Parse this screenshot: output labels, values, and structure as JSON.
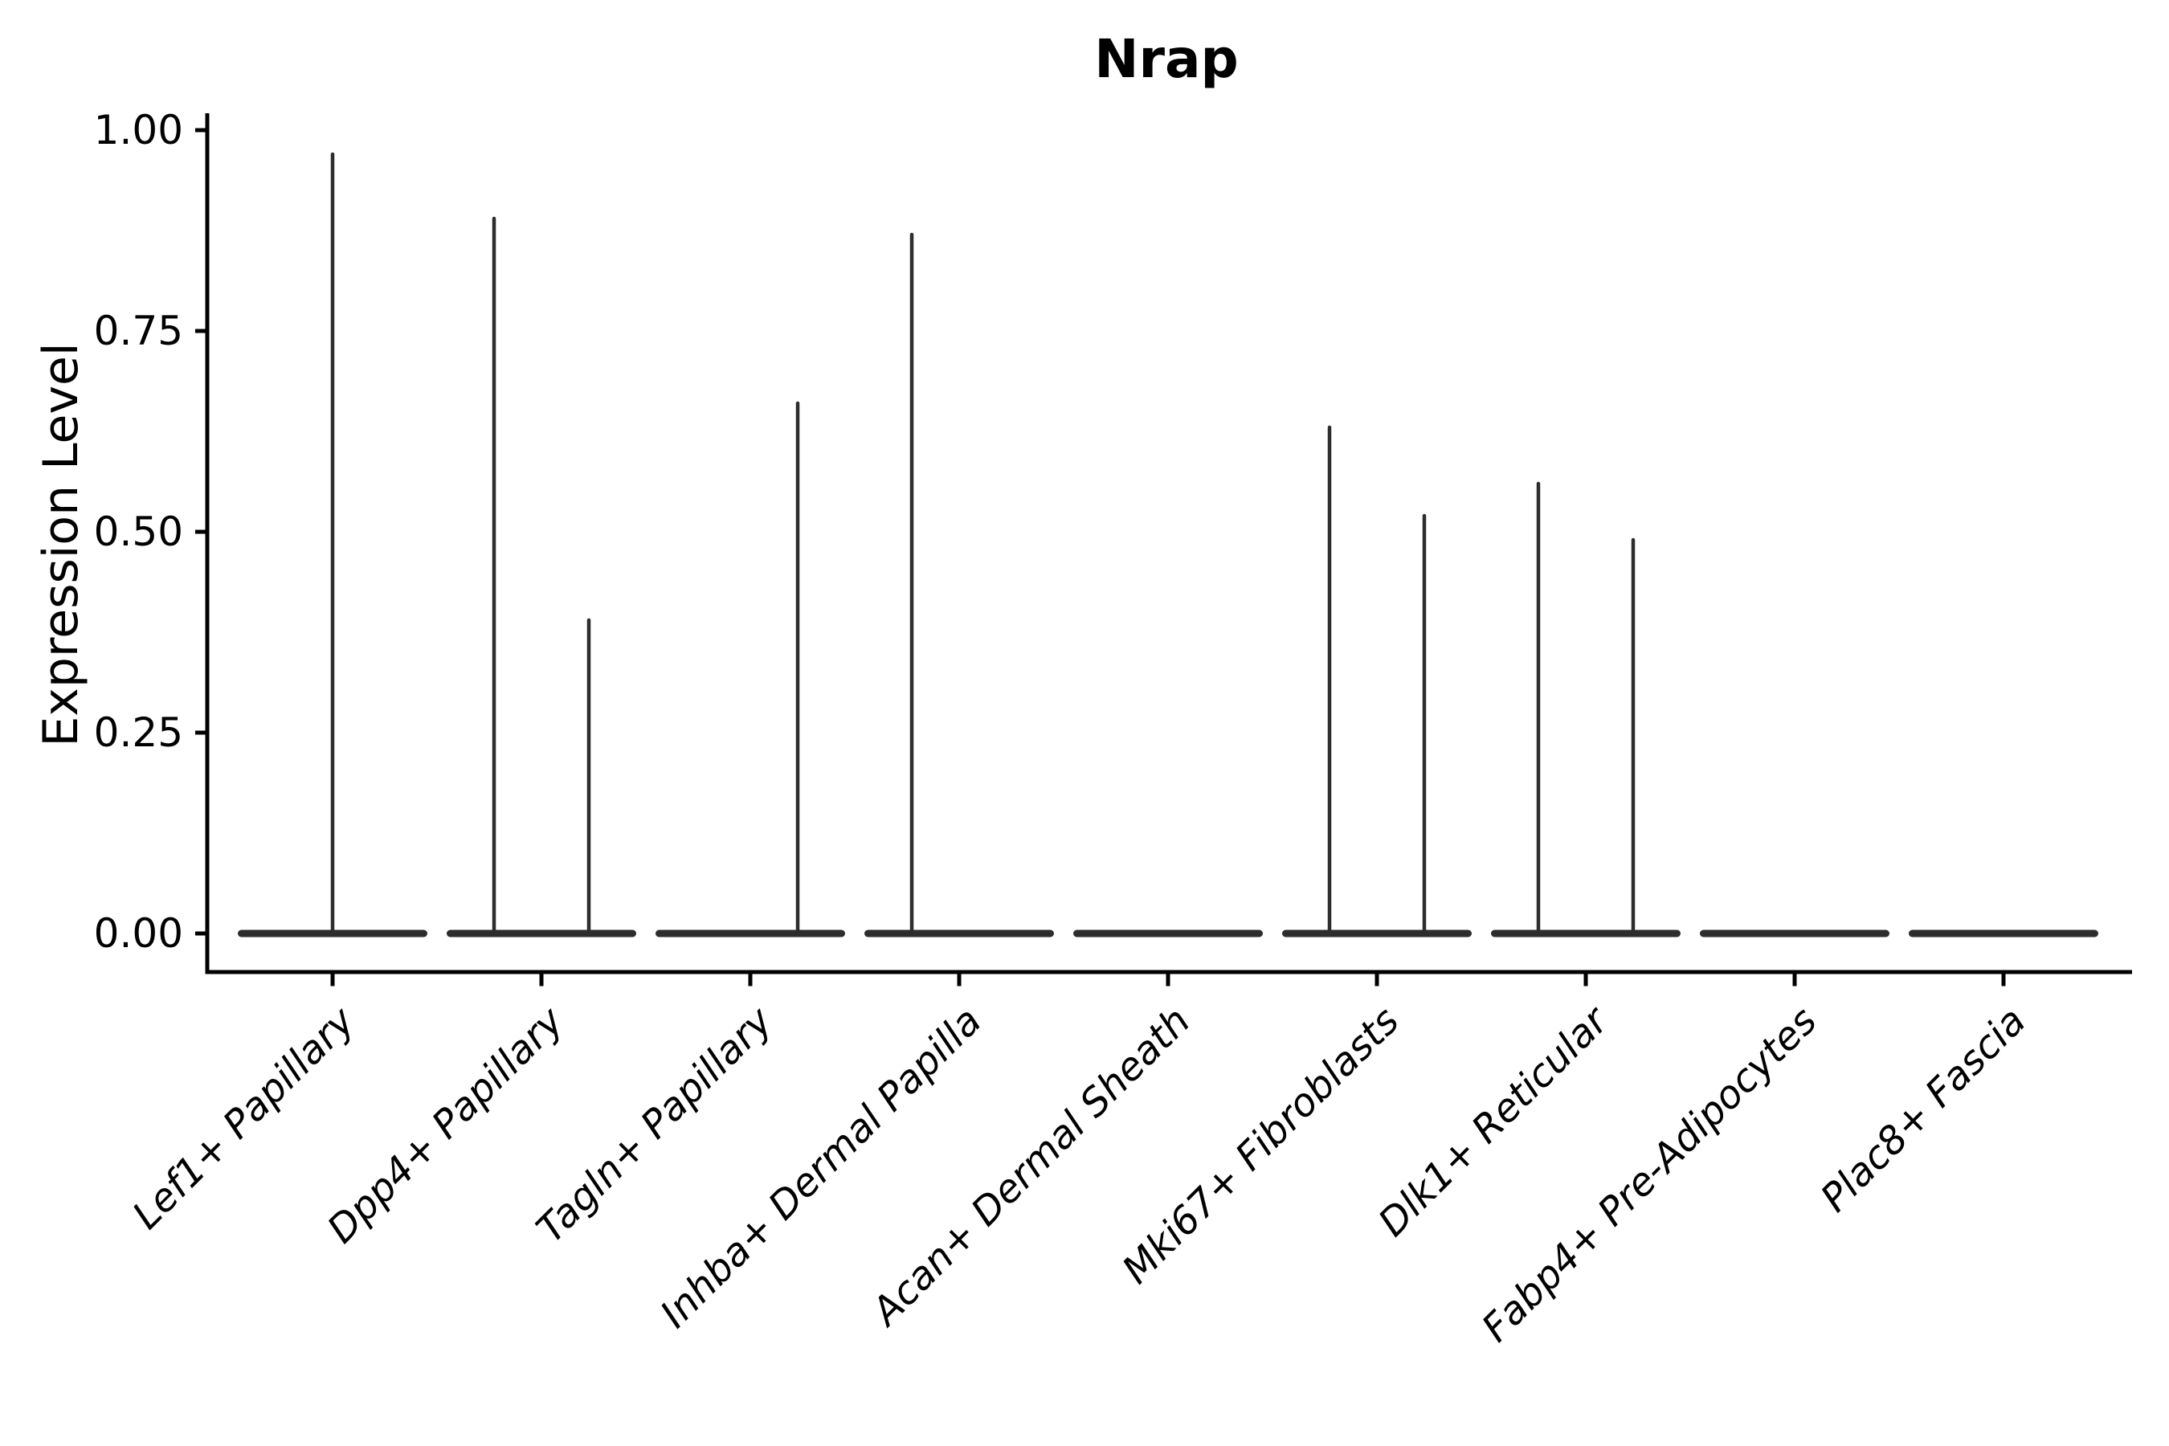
{
  "chart_data": {
    "type": "violin",
    "title": "Nrap",
    "ylabel": "Expression Level",
    "xlabel": "",
    "grid": false,
    "legend_position": "none",
    "background_color": "#ffffff",
    "axis_color": "#000000",
    "violin_color": "#2d2d2d",
    "ylim": [
      -0.05,
      1.02
    ],
    "y_ticks": [
      {
        "value": 0.0,
        "label": "0.00"
      },
      {
        "value": 0.25,
        "label": "0.25"
      },
      {
        "value": 0.5,
        "label": "0.50"
      },
      {
        "value": 0.75,
        "label": "0.75"
      },
      {
        "value": 1.0,
        "label": "1.00"
      }
    ],
    "categories": [
      "Lef1+ Papillary",
      "Dpp4+ Papillary",
      "Tagln+ Papillary",
      "Inhba+ Dermal Papilla",
      "Acan+ Dermal Sheath",
      "Mki67+ Fibroblasts",
      "Dlk1+ Reticular",
      "Fabp4+ Pre-Adipocytes",
      "Plac8+ Fascia"
    ],
    "violins": [
      {
        "category": "Lef1+ Papillary",
        "zero_body": true,
        "spikes": [
          {
            "pos": "center",
            "max": 0.97
          }
        ]
      },
      {
        "category": "Dpp4+ Papillary",
        "zero_body": true,
        "spikes": [
          {
            "pos": "left",
            "max": 0.89
          },
          {
            "pos": "right",
            "max": 0.39
          }
        ]
      },
      {
        "category": "Tagln+ Papillary",
        "zero_body": true,
        "spikes": [
          {
            "pos": "right",
            "max": 0.66
          }
        ]
      },
      {
        "category": "Inhba+ Dermal Papilla",
        "zero_body": true,
        "spikes": [
          {
            "pos": "left",
            "max": 0.87
          }
        ]
      },
      {
        "category": "Acan+ Dermal Sheath",
        "zero_body": true,
        "spikes": []
      },
      {
        "category": "Mki67+ Fibroblasts",
        "zero_body": true,
        "spikes": [
          {
            "pos": "left",
            "max": 0.63
          },
          {
            "pos": "right",
            "max": 0.52
          }
        ]
      },
      {
        "category": "Dlk1+ Reticular",
        "zero_body": true,
        "spikes": [
          {
            "pos": "left",
            "max": 0.56
          },
          {
            "pos": "right",
            "max": 0.49
          }
        ]
      },
      {
        "category": "Fabp4+ Pre-Adipocytes",
        "zero_body": true,
        "spikes": []
      },
      {
        "category": "Plac8+ Fascia",
        "zero_body": true,
        "spikes": []
      }
    ]
  }
}
